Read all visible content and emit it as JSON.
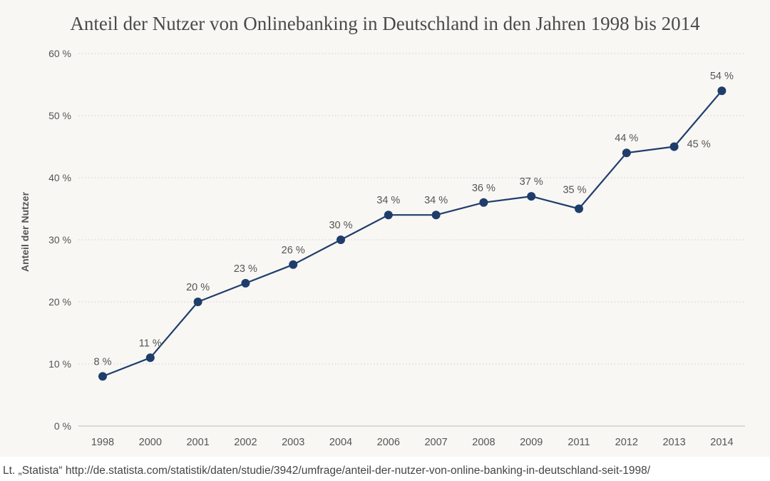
{
  "chart_data": {
    "type": "line",
    "title": "Anteil der Nutzer von Onlinebanking in Deutschland in den Jahren 1998 bis 2014",
    "ylabel": "Anteil der Nutzer",
    "xlabel": "",
    "categories": [
      "1998",
      "2000",
      "2001",
      "2002",
      "2003",
      "2004",
      "2006",
      "2007",
      "2008",
      "2009",
      "2011",
      "2012",
      "2013",
      "2014"
    ],
    "series": [
      {
        "values": [
          8,
          11,
          20,
          23,
          26,
          30,
          34,
          34,
          36,
          37,
          35,
          44,
          45,
          54
        ],
        "data_labels": [
          "8 %",
          "11 %",
          "20 %",
          "23 %",
          "26 %",
          "30 %",
          "34 %",
          "34 %",
          "36 %",
          "37 %",
          "35 %",
          "44 %",
          "45 %",
          "54 %"
        ],
        "color": "#1f3d6b"
      }
    ],
    "ylim": [
      0,
      60
    ],
    "yticks": [
      0,
      10,
      20,
      30,
      40,
      50,
      60
    ],
    "ytick_labels": [
      "0 %",
      "10 %",
      "20 %",
      "30 %",
      "40 %",
      "50 %",
      "60 %"
    ],
    "grid": true,
    "grid_style": "dotted",
    "legend": "none"
  },
  "source": "Lt. „Statista“ http://de.statista.com/statistik/daten/studie/3942/umfrage/anteil-der-nutzer-von-online-banking-in-deutschland-seit-1998/",
  "colors": {
    "background": "#f8f7f4",
    "line": "#1f3d6b",
    "grid": "#cfcfcf",
    "text": "#555555"
  }
}
